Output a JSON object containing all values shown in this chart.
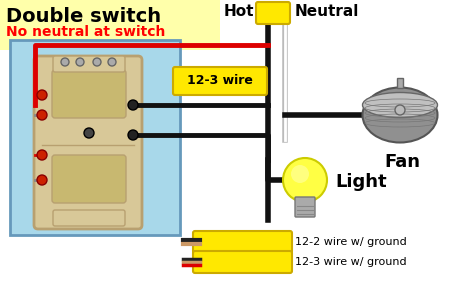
{
  "title": "Double switch",
  "subtitle": "No neutral at switch",
  "bg_color": "#ffffff",
  "switch_box_color": "#a8d8ea",
  "wire_label": "12-3 wire",
  "wire_label_color": "#ffe800",
  "legend_1": "12-2 wire w/ ground",
  "legend_2": "12-3 wire w/ ground",
  "label_hot": "Hot",
  "label_neutral": "Neutral",
  "label_fan": "Fan",
  "label_light": "Light",
  "title_bg": "#ffffaa",
  "switch_body_color": "#d8c898",
  "switch_border_color": "#b8a070",
  "toggle_color": "#c8b870",
  "screw_red": "#cc2200",
  "wire_black": "#111111",
  "wire_red": "#dd0000",
  "wire_white": "#dddddd",
  "wire_yellow_sheath": "#ffe800",
  "fan_body": "#909090",
  "fan_highlight": "#c0c0c0",
  "bulb_color": "#ffff44"
}
